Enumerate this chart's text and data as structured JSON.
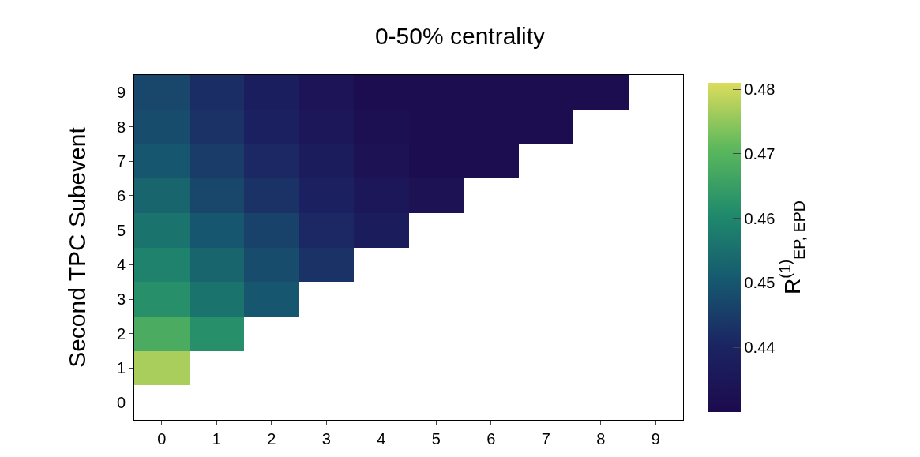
{
  "chart_data": {
    "type": "heatmap",
    "title": "0-50% centrality",
    "ylabel": "Second TPC Subevent",
    "clabel": "R$^{(1)}$$_{EP, EPD}$",
    "categories": [
      "0",
      "1",
      "2",
      "3",
      "4",
      "5",
      "6",
      "7",
      "8",
      "9"
    ],
    "y_categories": [
      "9",
      "8",
      "7",
      "6",
      "5",
      "4",
      "3",
      "2",
      "1",
      "0"
    ],
    "cells": [
      [
        0.447,
        0.442,
        0.438,
        0.434,
        0.431,
        0.431,
        0.431,
        0.431,
        0.431,
        null
      ],
      [
        0.448,
        0.443,
        0.439,
        0.435,
        0.432,
        0.431,
        0.431,
        0.431,
        null,
        null
      ],
      [
        0.45,
        0.445,
        0.441,
        0.437,
        0.433,
        0.431,
        0.431,
        null,
        null,
        null
      ],
      [
        0.453,
        0.447,
        0.443,
        0.439,
        0.435,
        0.433,
        null,
        null,
        null,
        null
      ],
      [
        0.456,
        0.45,
        0.446,
        0.441,
        0.437,
        null,
        null,
        null,
        null,
        null
      ],
      [
        0.459,
        0.453,
        0.448,
        0.443,
        null,
        null,
        null,
        null,
        null,
        null
      ],
      [
        0.462,
        0.456,
        0.45,
        null,
        null,
        null,
        null,
        null,
        null,
        null
      ],
      [
        0.468,
        0.462,
        null,
        null,
        null,
        null,
        null,
        null,
        null,
        null
      ],
      [
        0.477,
        null,
        null,
        null,
        null,
        null,
        null,
        null,
        null,
        null
      ],
      [
        null,
        null,
        null,
        null,
        null,
        null,
        null,
        null,
        null,
        null
      ]
    ],
    "clim": [
      0.43,
      0.481
    ],
    "cticks": [
      0.44,
      0.45,
      0.46,
      0.47,
      0.48
    ]
  }
}
